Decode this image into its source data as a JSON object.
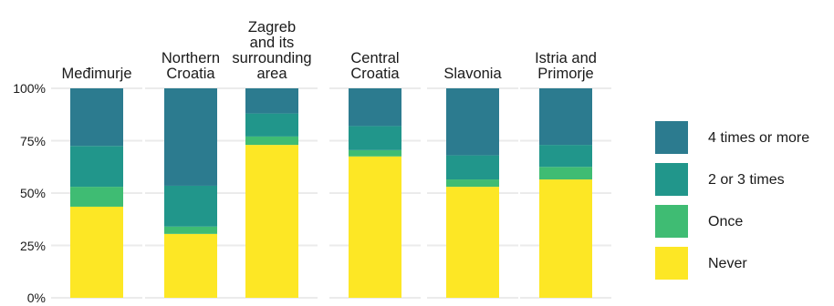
{
  "chart_data": {
    "type": "bar",
    "stacked": true,
    "orientation": "vertical",
    "facets": [
      "Međimurje",
      "Northern\nCroatia",
      "Zagreb\nand its\nsurrounding\narea",
      "Central\nCroatia",
      "Slavonia",
      "Istria and\nPrimorje"
    ],
    "y_ticks": [
      "100%",
      "75%",
      "50%",
      "25%",
      "0%"
    ],
    "ylim": [
      0,
      100
    ],
    "grid": true,
    "legend_position": "right",
    "series": [
      {
        "name": "Never",
        "color": "#fde725",
        "values": [
          43.5,
          30.5,
          73,
          67.5,
          53,
          56.5
        ]
      },
      {
        "name": "Once",
        "color": "#3fbc73",
        "values": [
          9.5,
          3.5,
          4,
          3,
          3.5,
          6
        ]
      },
      {
        "name": "2 or 3 times",
        "color": "#21968b",
        "values": [
          19.5,
          19.5,
          11,
          11.5,
          11.5,
          10.5
        ]
      },
      {
        "name": "4 times or more",
        "color": "#2c7b8f",
        "values": [
          27.5,
          46.5,
          12,
          18,
          32,
          27
        ]
      }
    ],
    "legend": [
      "4 times or more",
      "2 or 3 times",
      "Once",
      "Never"
    ]
  }
}
